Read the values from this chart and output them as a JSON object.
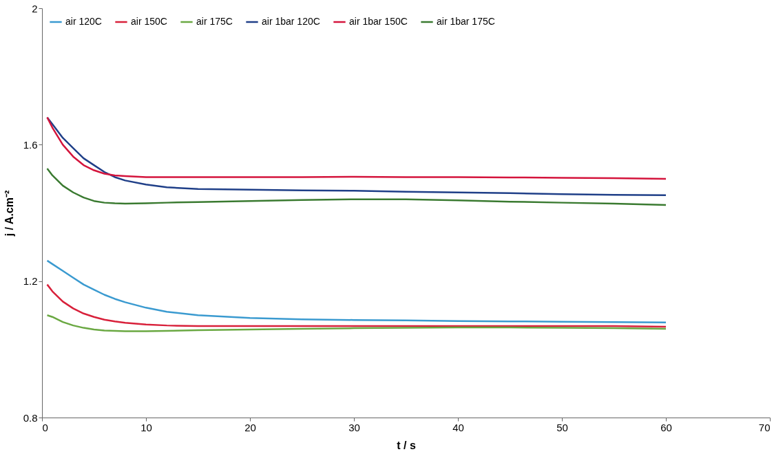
{
  "chart_data": {
    "type": "line",
    "xlabel": "t / s",
    "ylabel": "j / A.cm⁻²",
    "xlim": [
      0,
      70
    ],
    "xticks": [
      0,
      10,
      20,
      30,
      40,
      50,
      60,
      70
    ],
    "ylim": [
      0.8,
      2
    ],
    "yticks": [
      0.8,
      1.2,
      1.6,
      2
    ],
    "grid": false,
    "legend": "top left",
    "marker": "none",
    "line_style": "solid",
    "x": [
      0.5,
      1,
      2,
      3,
      4,
      5,
      6,
      7,
      8,
      10,
      12,
      15,
      20,
      25,
      30,
      35,
      40,
      45,
      50,
      55,
      60
    ],
    "series": [
      {
        "name": "air 120C",
        "color": "#3a9ad0",
        "values": [
          1.26,
          1.25,
          1.23,
          1.21,
          1.19,
          1.175,
          1.16,
          1.148,
          1.138,
          1.122,
          1.11,
          1.1,
          1.092,
          1.088,
          1.086,
          1.085,
          1.083,
          1.082,
          1.081,
          1.08,
          1.079
        ]
      },
      {
        "name": "air 150C",
        "color": "#d8203a",
        "values": [
          1.19,
          1.17,
          1.14,
          1.12,
          1.105,
          1.095,
          1.087,
          1.082,
          1.078,
          1.073,
          1.07,
          1.068,
          1.068,
          1.068,
          1.068,
          1.068,
          1.068,
          1.068,
          1.068,
          1.068,
          1.066
        ]
      },
      {
        "name": "air 175C",
        "color": "#6aa842",
        "values": [
          1.1,
          1.095,
          1.08,
          1.07,
          1.063,
          1.058,
          1.055,
          1.054,
          1.053,
          1.053,
          1.054,
          1.056,
          1.058,
          1.06,
          1.062,
          1.063,
          1.064,
          1.064,
          1.063,
          1.062,
          1.06
        ]
      },
      {
        "name": "air 1bar 120C",
        "color": "#1f3f88",
        "values": [
          1.68,
          1.66,
          1.62,
          1.59,
          1.56,
          1.54,
          1.52,
          1.505,
          1.495,
          1.483,
          1.475,
          1.47,
          1.468,
          1.466,
          1.465,
          1.462,
          1.46,
          1.458,
          1.455,
          1.453,
          1.452
        ]
      },
      {
        "name": "air 1bar 150C",
        "color": "#d4143c",
        "values": [
          1.68,
          1.65,
          1.6,
          1.565,
          1.54,
          1.525,
          1.515,
          1.51,
          1.508,
          1.505,
          1.505,
          1.505,
          1.505,
          1.505,
          1.506,
          1.505,
          1.505,
          1.504,
          1.503,
          1.502,
          1.5
        ]
      },
      {
        "name": "air 1bar 175C",
        "color": "#3a7a30",
        "values": [
          1.53,
          1.51,
          1.48,
          1.46,
          1.445,
          1.435,
          1.43,
          1.428,
          1.427,
          1.428,
          1.43,
          1.432,
          1.435,
          1.438,
          1.44,
          1.44,
          1.437,
          1.433,
          1.43,
          1.427,
          1.423
        ]
      }
    ]
  }
}
